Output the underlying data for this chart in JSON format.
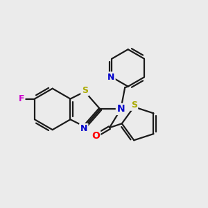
{
  "background_color": "#ebebeb",
  "bond_color": "#1a1a1a",
  "atom_colors": {
    "N": "#0000cc",
    "S_thiazole": "#aaaa00",
    "S_thiophene": "#aaaa00",
    "F": "#cc00cc",
    "O": "#ff0000"
  },
  "bond_lw": 1.6,
  "dbl_off": 0.07
}
